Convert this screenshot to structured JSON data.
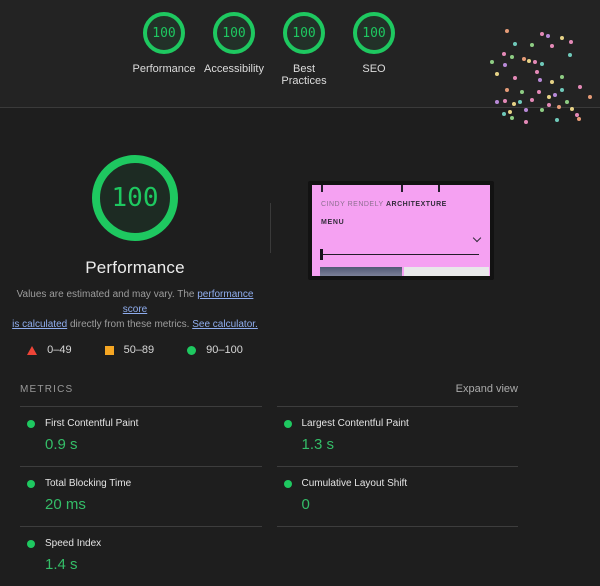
{
  "theme": {
    "header_bg": "#232323",
    "body_bg": "#1e1e1e",
    "divider": "#3a3a3a",
    "pass_green": "#1ec860",
    "value_green": "#34bd68",
    "link_blue": "#8fadee",
    "fail_red": "#ee4437",
    "average_orange": "#f5a623",
    "thumb_pink": "#f5a1f2"
  },
  "header": {
    "categories": [
      {
        "label": "Performance",
        "score": "100"
      },
      {
        "label": "Accessibility",
        "score": "100"
      },
      {
        "label": "Best Practices",
        "score": "100"
      },
      {
        "label": "SEO",
        "score": "100"
      }
    ]
  },
  "confetti": {
    "palette": [
      "#ef8fc0",
      "#f0a27c",
      "#c18fe2",
      "#74d3c3",
      "#95d789",
      "#f1dc8c"
    ],
    "dots": [
      [
        505,
        29,
        1
      ],
      [
        540,
        32,
        0
      ],
      [
        546,
        34,
        2
      ],
      [
        560,
        36,
        5
      ],
      [
        569,
        40,
        0
      ],
      [
        513,
        42,
        3
      ],
      [
        530,
        43,
        4
      ],
      [
        550,
        44,
        0
      ],
      [
        502,
        52,
        0
      ],
      [
        568,
        53,
        3
      ],
      [
        510,
        55,
        4
      ],
      [
        522,
        57,
        1
      ],
      [
        527,
        59,
        5
      ],
      [
        533,
        60,
        0
      ],
      [
        540,
        62,
        3
      ],
      [
        503,
        63,
        2
      ],
      [
        490,
        60,
        4
      ],
      [
        535,
        70,
        0
      ],
      [
        495,
        72,
        5
      ],
      [
        560,
        75,
        4
      ],
      [
        513,
        76,
        0
      ],
      [
        538,
        78,
        2
      ],
      [
        550,
        80,
        5
      ],
      [
        578,
        85,
        0
      ],
      [
        505,
        88,
        1
      ],
      [
        560,
        88,
        3
      ],
      [
        520,
        90,
        4
      ],
      [
        537,
        90,
        0
      ],
      [
        553,
        93,
        2
      ],
      [
        547,
        95,
        5
      ],
      [
        530,
        98,
        0
      ],
      [
        565,
        100,
        4
      ],
      [
        495,
        100,
        2
      ],
      [
        503,
        99,
        0
      ],
      [
        512,
        102,
        5
      ],
      [
        518,
        100,
        3
      ],
      [
        547,
        103,
        0
      ],
      [
        557,
        105,
        1
      ],
      [
        540,
        108,
        4
      ],
      [
        524,
        108,
        2
      ],
      [
        502,
        112,
        3
      ],
      [
        508,
        110,
        5
      ],
      [
        575,
        113,
        0
      ],
      [
        510,
        116,
        4
      ],
      [
        577,
        117,
        1
      ],
      [
        524,
        120,
        0
      ],
      [
        588,
        95,
        1
      ],
      [
        555,
        118,
        3
      ],
      [
        570,
        107,
        5
      ]
    ]
  },
  "summary": {
    "gauge": {
      "score": "100",
      "label": "Performance"
    },
    "description": {
      "text1": "Values are estimated and may vary. The ",
      "link1_line1": "performance score",
      "link1_line2": "is calculated",
      "text2": " directly from these metrics. ",
      "link2": "See calculator."
    },
    "legend": [
      {
        "range": "0–49"
      },
      {
        "range": "50–89"
      },
      {
        "range": "90–100"
      }
    ],
    "thumbnail": {
      "brand_light": "CINDY RENDELY",
      "brand_bold": "ARCHITEXTURE",
      "menu": "MENU"
    }
  },
  "metrics": {
    "title": "METRICS",
    "expand": "Expand view",
    "items": [
      {
        "name": "First Contentful Paint",
        "value": "0.9 s"
      },
      {
        "name": "Largest Contentful Paint",
        "value": "1.3 s"
      },
      {
        "name": "Total Blocking Time",
        "value": "20 ms"
      },
      {
        "name": "Cumulative Layout Shift",
        "value": "0"
      },
      {
        "name": "Speed Index",
        "value": "1.4 s"
      }
    ]
  }
}
